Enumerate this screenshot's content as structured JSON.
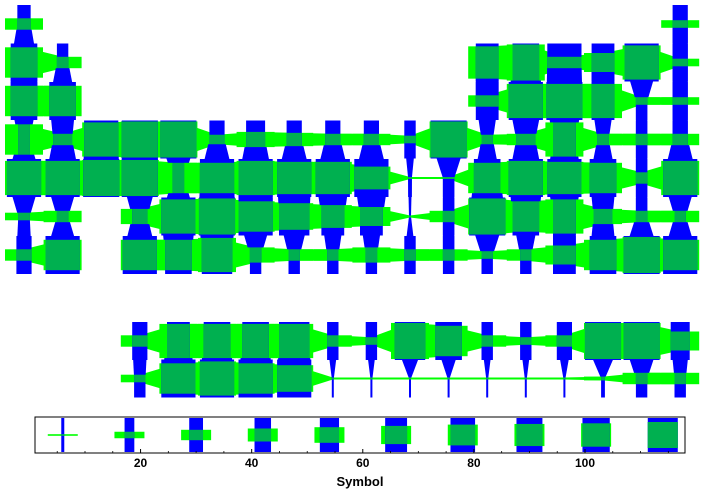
{
  "chart_data": {
    "type": "heatmap",
    "title": "",
    "xlabel": "Symbol",
    "ylabel": "",
    "grid": false,
    "colors": {
      "horizontal_bar": "#00ff00",
      "vertical_bar": "#0000ff",
      "overlap": "#00b050"
    },
    "encoding_note": "Each element is a cross of a green horizontal bar and a blue vertical bar; neighbouring elements are joined by connectors. Legend below shows bar sizes for elements 6 to 114.",
    "legend_scale": {
      "xlim": [
        1,
        118
      ],
      "xticks": [
        20,
        40,
        60,
        80,
        100
      ],
      "samples": [
        {
          "z": 6,
          "h": 0.0,
          "v": 1.0
        },
        {
          "z": 18,
          "h": 0.25,
          "v": 1.0
        },
        {
          "z": 30,
          "h": 0.4,
          "v": 1.0
        },
        {
          "z": 42,
          "h": 0.5,
          "v": 1.0
        },
        {
          "z": 54,
          "h": 0.6,
          "v": 1.0
        },
        {
          "z": 66,
          "h": 0.7,
          "v": 1.0
        },
        {
          "z": 78,
          "h": 0.8,
          "v": 1.0
        },
        {
          "z": 90,
          "h": 0.85,
          "v": 1.0
        },
        {
          "z": 102,
          "h": 0.9,
          "v": 1.0
        },
        {
          "z": 114,
          "h": 1.0,
          "v": 1.0
        }
      ]
    },
    "main_rows": [
      [
        {
          "g": 1,
          "h": 0.3,
          "v": 0.35
        },
        {
          "g": 18,
          "h": 0.2,
          "v": 0.4
        }
      ],
      [
        {
          "g": 1,
          "h": 0.8,
          "v": 0.7
        },
        {
          "g": 2,
          "h": 0.3,
          "v": 0.3
        },
        {
          "g": 13,
          "h": 0.85,
          "v": 0.6
        },
        {
          "g": 14,
          "h": 0.95,
          "v": 0.7
        },
        {
          "g": 15,
          "h": 0.3,
          "v": 0.9
        },
        {
          "g": 16,
          "h": 0.5,
          "v": 0.6
        },
        {
          "g": 17,
          "h": 0.9,
          "v": 0.9
        },
        {
          "g": 18,
          "h": 0.2,
          "v": 0.4
        }
      ],
      [
        {
          "g": 1,
          "h": 0.8,
          "v": 0.7
        },
        {
          "g": 2,
          "h": 0.8,
          "v": 0.7
        },
        {
          "g": 13,
          "h": 0.3,
          "v": 0.6
        },
        {
          "g": 14,
          "h": 0.9,
          "v": 0.9
        },
        {
          "g": 15,
          "h": 0.9,
          "v": 0.95
        },
        {
          "g": 16,
          "h": 0.9,
          "v": 0.6
        },
        {
          "g": 17,
          "h": 0.2,
          "v": 0.3
        },
        {
          "g": 18,
          "h": 0.2,
          "v": 0.4
        }
      ],
      [
        {
          "g": 1,
          "h": 0.8,
          "v": 0.3
        },
        {
          "g": 2,
          "h": 0.3,
          "v": 0.5
        },
        {
          "g": 3,
          "h": 0.9,
          "v": 0.9
        },
        {
          "g": 4,
          "h": 0.95,
          "v": 0.95
        },
        {
          "g": 5,
          "h": 0.95,
          "v": 0.95
        },
        {
          "g": 6,
          "h": 0.25,
          "v": 0.4
        },
        {
          "g": 7,
          "h": 0.4,
          "v": 0.5
        },
        {
          "g": 8,
          "h": 0.35,
          "v": 0.4
        },
        {
          "g": 9,
          "h": 0.3,
          "v": 0.4
        },
        {
          "g": 10,
          "h": 0.3,
          "v": 0.4
        },
        {
          "g": 11,
          "h": 0.2,
          "v": 0.3
        },
        {
          "g": 12,
          "h": 0.95,
          "v": 0.95
        },
        {
          "g": 13,
          "h": 0.25,
          "v": 0.3
        },
        {
          "g": 14,
          "h": 0.3,
          "v": 0.5
        },
        {
          "g": 15,
          "h": 0.9,
          "v": 0.6
        },
        {
          "g": 16,
          "h": 0.3,
          "v": 0.3
        },
        {
          "g": 17,
          "h": 0.3,
          "v": 0.3
        },
        {
          "g": 18,
          "h": 0.3,
          "v": 0.4
        }
      ],
      [
        {
          "g": 1,
          "h": 0.9,
          "v": 0.9
        },
        {
          "g": 2,
          "h": 0.9,
          "v": 0.9
        },
        {
          "g": 3,
          "h": 0.95,
          "v": 0.95
        },
        {
          "g": 4,
          "h": 0.95,
          "v": 0.95
        },
        {
          "g": 5,
          "h": 0.8,
          "v": 0.3
        },
        {
          "g": 6,
          "h": 0.8,
          "v": 0.9
        },
        {
          "g": 7,
          "h": 0.9,
          "v": 0.9
        },
        {
          "g": 8,
          "h": 0.85,
          "v": 0.9
        },
        {
          "g": 9,
          "h": 0.85,
          "v": 0.9
        },
        {
          "g": 10,
          "h": 0.6,
          "v": 0.9
        },
        {
          "g": 11,
          "h": 0.05,
          "v": 0.1
        },
        {
          "g": 12,
          "h": 0.05,
          "v": 0.3
        },
        {
          "g": 13,
          "h": 0.8,
          "v": 0.7
        },
        {
          "g": 14,
          "h": 0.9,
          "v": 0.9
        },
        {
          "g": 15,
          "h": 0.85,
          "v": 0.9
        },
        {
          "g": 16,
          "h": 0.8,
          "v": 0.7
        },
        {
          "g": 17,
          "h": 0.3,
          "v": 0.3
        },
        {
          "g": 18,
          "h": 0.9,
          "v": 0.9
        }
      ],
      [
        {
          "g": 1,
          "h": 0.2,
          "v": 0.3
        },
        {
          "g": 2,
          "h": 0.3,
          "v": 0.3
        },
        {
          "g": 4,
          "h": 0.4,
          "v": 0.4
        },
        {
          "g": 5,
          "h": 0.9,
          "v": 0.9
        },
        {
          "g": 6,
          "h": 0.95,
          "v": 0.95
        },
        {
          "g": 7,
          "h": 0.8,
          "v": 0.9
        },
        {
          "g": 8,
          "h": 0.7,
          "v": 0.8
        },
        {
          "g": 9,
          "h": 0.6,
          "v": 0.6
        },
        {
          "g": 10,
          "h": 0.5,
          "v": 0.6
        },
        {
          "g": 11,
          "h": 0.05,
          "v": 0.05
        },
        {
          "g": 12,
          "h": 0.3,
          "v": 0.3
        },
        {
          "g": 13,
          "h": 0.95,
          "v": 0.95
        },
        {
          "g": 14,
          "h": 0.8,
          "v": 0.7
        },
        {
          "g": 15,
          "h": 0.9,
          "v": 0.6
        },
        {
          "g": 16,
          "h": 0.4,
          "v": 0.5
        },
        {
          "g": 17,
          "h": 0.3,
          "v": 0.3
        },
        {
          "g": 18,
          "h": 0.3,
          "v": 0.3
        }
      ],
      [
        {
          "g": 1,
          "h": 0.3,
          "v": 0.4
        },
        {
          "g": 2,
          "h": 0.8,
          "v": 0.9
        },
        {
          "g": 4,
          "h": 0.8,
          "v": 0.9
        },
        {
          "g": 5,
          "h": 0.8,
          "v": 0.7
        },
        {
          "g": 6,
          "h": 0.9,
          "v": 0.8
        },
        {
          "g": 7,
          "h": 0.4,
          "v": 0.3
        },
        {
          "g": 8,
          "h": 0.3,
          "v": 0.3
        },
        {
          "g": 9,
          "h": 0.3,
          "v": 0.3
        },
        {
          "g": 10,
          "h": 0.4,
          "v": 0.3
        },
        {
          "g": 11,
          "h": 0.3,
          "v": 0.3
        },
        {
          "g": 12,
          "h": 0.3,
          "v": 0.3
        },
        {
          "g": 13,
          "h": 0.2,
          "v": 0.3
        },
        {
          "g": 14,
          "h": 0.3,
          "v": 0.3
        },
        {
          "g": 15,
          "h": 0.5,
          "v": 0.6
        },
        {
          "g": 16,
          "h": 0.8,
          "v": 0.7
        },
        {
          "g": 17,
          "h": 0.95,
          "v": 0.95
        },
        {
          "g": 18,
          "h": 0.8,
          "v": 0.9
        }
      ]
    ],
    "fblock_rows": [
      [
        {
          "g": 4,
          "h": 0.3,
          "v": 0.4
        },
        {
          "g": 5,
          "h": 0.9,
          "v": 0.6
        },
        {
          "g": 6,
          "h": 0.9,
          "v": 0.7
        },
        {
          "g": 7,
          "h": 0.9,
          "v": 0.7
        },
        {
          "g": 8,
          "h": 0.9,
          "v": 0.8
        },
        {
          "g": 9,
          "h": 0.3,
          "v": 0.3
        },
        {
          "g": 10,
          "h": 0.2,
          "v": 0.3
        },
        {
          "g": 11,
          "h": 0.95,
          "v": 0.8
        },
        {
          "g": 12,
          "h": 0.8,
          "v": 0.7
        },
        {
          "g": 13,
          "h": 0.3,
          "v": 0.3
        },
        {
          "g": 14,
          "h": 0.2,
          "v": 0.3
        },
        {
          "g": 15,
          "h": 0.3,
          "v": 0.4
        },
        {
          "g": 16,
          "h": 0.95,
          "v": 0.95
        },
        {
          "g": 17,
          "h": 0.95,
          "v": 0.95
        },
        {
          "g": 18,
          "h": 0.5,
          "v": 0.5
        }
      ],
      [
        {
          "g": 4,
          "h": 0.2,
          "v": 0.3
        },
        {
          "g": 5,
          "h": 0.8,
          "v": 0.9
        },
        {
          "g": 6,
          "h": 0.9,
          "v": 0.9
        },
        {
          "g": 7,
          "h": 0.8,
          "v": 0.9
        },
        {
          "g": 8,
          "h": 0.7,
          "v": 0.9
        },
        {
          "g": 9,
          "h": 0.05,
          "v": 0.05
        },
        {
          "g": 10,
          "h": 0.05,
          "v": 0.05
        },
        {
          "g": 11,
          "h": 0.05,
          "v": 0.05
        },
        {
          "g": 12,
          "h": 0.05,
          "v": 0.05
        },
        {
          "g": 13,
          "h": 0.05,
          "v": 0.05
        },
        {
          "g": 14,
          "h": 0.05,
          "v": 0.05
        },
        {
          "g": 15,
          "h": 0.05,
          "v": 0.05
        },
        {
          "g": 16,
          "h": 0.1,
          "v": 0.1
        },
        {
          "g": 17,
          "h": 0.3,
          "v": 0.3
        },
        {
          "g": 18,
          "h": 0.3,
          "v": 0.3
        }
      ]
    ]
  }
}
